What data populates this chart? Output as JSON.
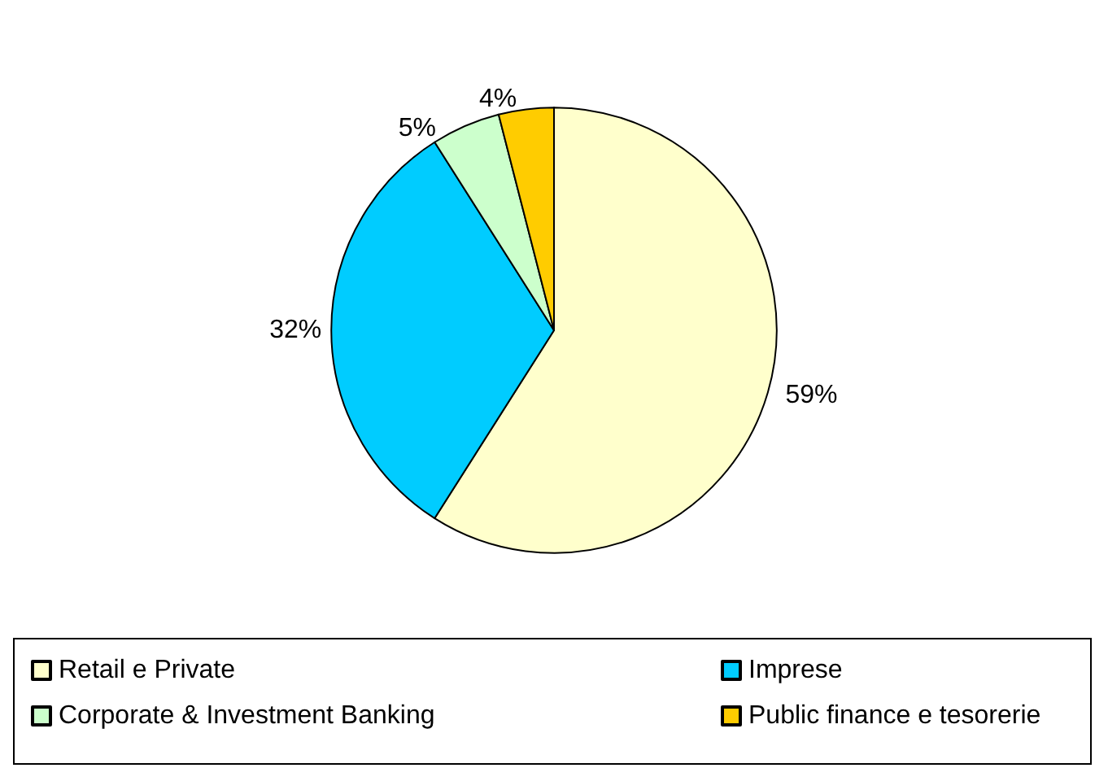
{
  "chart_data": {
    "type": "pie",
    "categories": [
      "Retail e Private",
      "Imprese",
      "Corporate & Investment Banking",
      "Public finance e tesorerie"
    ],
    "values": [
      59,
      32,
      5,
      4
    ],
    "value_labels": [
      "59%",
      "32%",
      "5%",
      "4%"
    ],
    "colors": [
      "#ffffcc",
      "#00ccff",
      "#ccffcc",
      "#ffcc00"
    ],
    "legend": "bottom"
  }
}
